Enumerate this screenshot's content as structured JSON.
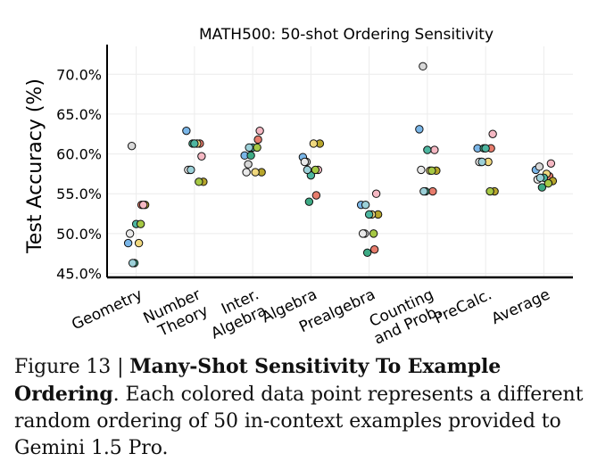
{
  "chart_data": {
    "type": "scatter",
    "title": "MATH500: 50-shot Ordering Sensitivity",
    "ylabel": "Test Accuracy (%)",
    "xlabel": "",
    "ylim": [
      44.5,
      73.5
    ],
    "yticks": [
      45,
      50,
      55,
      60,
      65,
      70
    ],
    "ytick_labels": [
      "45.0%",
      "50.0%",
      "55.0%",
      "60.0%",
      "65.0%",
      "70.0%"
    ],
    "grid": true,
    "categories": [
      [
        "Geometry"
      ],
      [
        "Number",
        "Theory"
      ],
      [
        "Inter.",
        "Algebra"
      ],
      [
        "Algebra"
      ],
      [
        "Prealgebra"
      ],
      [
        "Counting",
        "and Prob."
      ],
      [
        "PreCalc."
      ],
      [
        "Average"
      ]
    ],
    "series": [
      {
        "color": "#7ab6e8",
        "values": [
          48.8,
          62.9,
          59.8,
          59.6,
          53.6,
          63.1,
          60.7,
          58.0
        ]
      },
      {
        "color": "#e77c6c",
        "values": [
          53.6,
          61.3,
          61.8,
          54.8,
          48.0,
          55.3,
          60.7,
          57.2
        ]
      },
      {
        "color": "#d8d8d8",
        "values": [
          61.0,
          58.0,
          58.7,
          59.0,
          50.0,
          71.0,
          59.0,
          58.4
        ]
      },
      {
        "color": "#b7a52b",
        "values": [
          53.6,
          56.5,
          57.7,
          61.3,
          52.4,
          57.9,
          55.3,
          56.6
        ]
      },
      {
        "color": "#3daa84",
        "values": [
          46.3,
          61.3,
          59.8,
          54.0,
          47.6,
          55.3,
          60.7,
          55.8
        ]
      },
      {
        "color": "#f5b8c3",
        "values": [
          53.6,
          59.7,
          62.9,
          58.0,
          55.0,
          60.5,
          62.5,
          58.8
        ]
      },
      {
        "color": "#e9e9e9",
        "values": [
          50.0,
          58.0,
          57.7,
          59.0,
          50.0,
          58.0,
          59.0,
          56.8
        ]
      },
      {
        "color": "#f0d87e",
        "values": [
          48.8,
          61.3,
          57.7,
          61.3,
          52.4,
          57.9,
          59.0,
          57.5
        ]
      },
      {
        "color": "#4db6a0",
        "values": [
          51.2,
          61.3,
          60.8,
          57.3,
          52.4,
          60.5,
          60.7,
          57.0
        ]
      },
      {
        "color": "#9cd0d8",
        "values": [
          46.3,
          58.0,
          60.8,
          58.0,
          53.6,
          55.3,
          59.0,
          57.0
        ]
      },
      {
        "color": "#a5c844",
        "values": [
          51.2,
          56.5,
          60.8,
          58.0,
          50.0,
          57.9,
          55.3,
          56.3
        ]
      }
    ]
  },
  "caption": {
    "label": "Figure 13 | ",
    "title": "Many-Shot Sensitivity To Example Ordering",
    "title_end": ".",
    "text": "Each colored data point represents a different random ordering of 50 in-context examples provided to Gemini 1.5 Pro."
  }
}
